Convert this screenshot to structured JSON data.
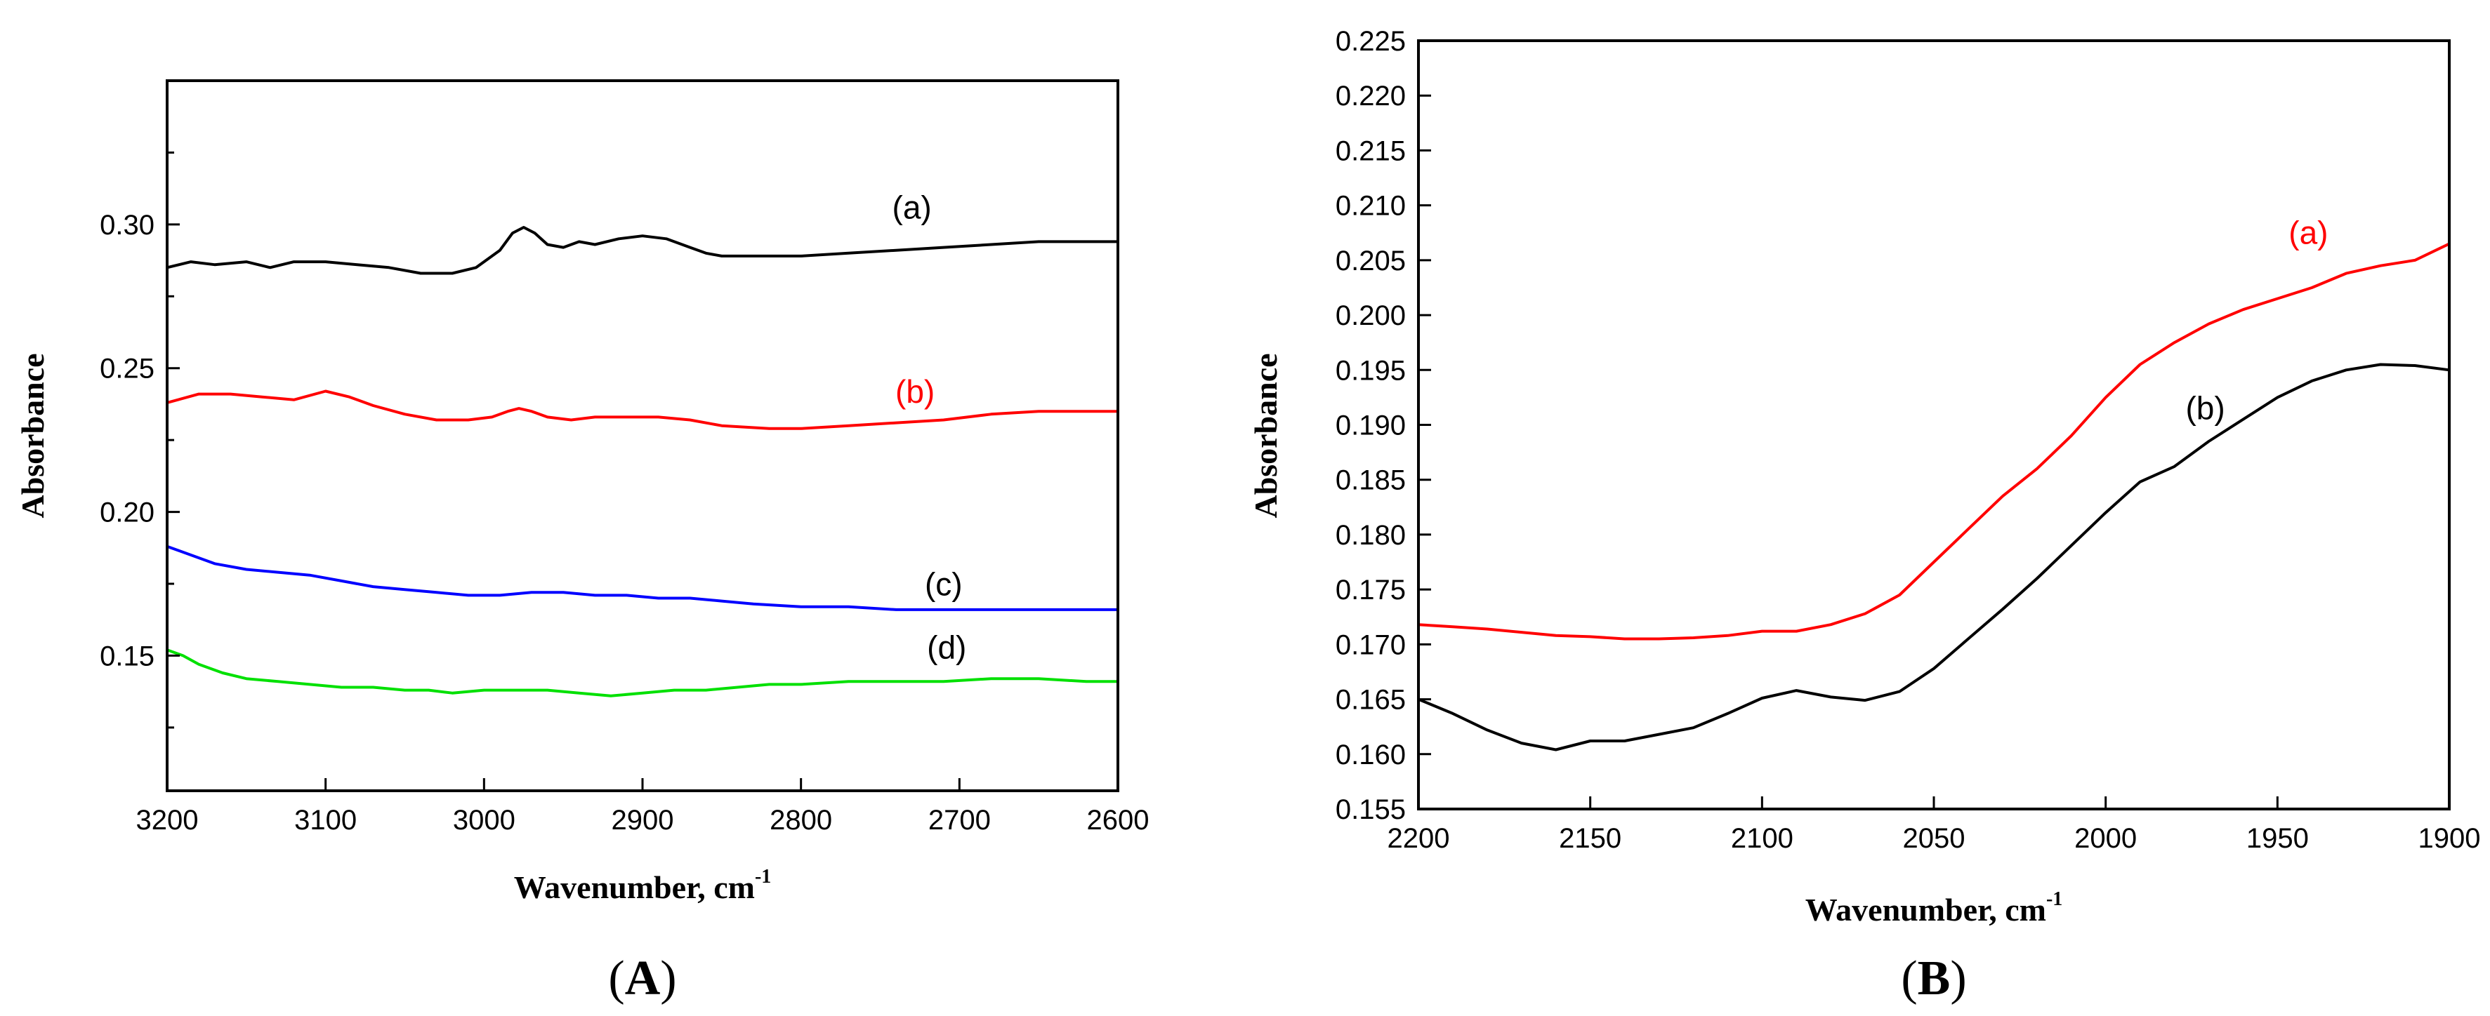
{
  "chart_data": [
    {
      "panel": "A",
      "panel_label": {
        "open": "(",
        "letter": "A",
        "close": ")"
      },
      "type": "line",
      "title": "",
      "xlabel": "Wavenumber, cm",
      "xlabel_superscript": "-1",
      "ylabel": "Absorbance",
      "xlim": [
        3200,
        2600
      ],
      "ylim": [
        0.103,
        0.35
      ],
      "xticks": [
        3200,
        3100,
        3000,
        2900,
        2800,
        2700,
        2600
      ],
      "xtick_labels": [
        "3200",
        "3100",
        "3000",
        "2900",
        "2800",
        "2700",
        "2600"
      ],
      "yticks": [
        0.15,
        0.2,
        0.25,
        0.3
      ],
      "ytick_labels": [
        "0.15",
        "0.20",
        "0.25",
        "0.30"
      ],
      "grid": false,
      "series": [
        {
          "name": "(a)",
          "color": "#000000",
          "label_at": [
            2730,
            0.302
          ],
          "x": [
            3200,
            3185,
            3170,
            3150,
            3135,
            3120,
            3100,
            3080,
            3060,
            3040,
            3020,
            3005,
            2990,
            2982,
            2975,
            2968,
            2960,
            2950,
            2940,
            2930,
            2915,
            2900,
            2885,
            2870,
            2860,
            2850,
            2830,
            2800,
            2770,
            2740,
            2710,
            2680,
            2650,
            2620,
            2600
          ],
          "y": [
            0.285,
            0.287,
            0.286,
            0.287,
            0.285,
            0.287,
            0.287,
            0.286,
            0.285,
            0.283,
            0.283,
            0.285,
            0.291,
            0.297,
            0.299,
            0.297,
            0.293,
            0.292,
            0.294,
            0.293,
            0.295,
            0.296,
            0.295,
            0.292,
            0.29,
            0.289,
            0.289,
            0.289,
            0.29,
            0.291,
            0.292,
            0.293,
            0.294,
            0.294,
            0.294
          ]
        },
        {
          "name": "(b)",
          "color": "#ff0000",
          "label_at": [
            2728,
            0.238
          ],
          "x": [
            3200,
            3180,
            3160,
            3140,
            3120,
            3100,
            3085,
            3070,
            3050,
            3030,
            3010,
            2995,
            2985,
            2978,
            2970,
            2960,
            2945,
            2930,
            2910,
            2890,
            2870,
            2850,
            2820,
            2800,
            2770,
            2740,
            2710,
            2680,
            2650,
            2620,
            2600
          ],
          "y": [
            0.238,
            0.241,
            0.241,
            0.24,
            0.239,
            0.242,
            0.24,
            0.237,
            0.234,
            0.232,
            0.232,
            0.233,
            0.235,
            0.236,
            0.235,
            0.233,
            0.232,
            0.233,
            0.233,
            0.233,
            0.232,
            0.23,
            0.229,
            0.229,
            0.23,
            0.231,
            0.232,
            0.234,
            0.235,
            0.235,
            0.235
          ]
        },
        {
          "name": "(c)",
          "color": "#0000ff",
          "label_at": [
            2710,
            0.171
          ],
          "x": [
            3200,
            3185,
            3170,
            3150,
            3130,
            3110,
            3090,
            3070,
            3050,
            3030,
            3010,
            2990,
            2970,
            2950,
            2930,
            2910,
            2890,
            2870,
            2850,
            2830,
            2800,
            2770,
            2740,
            2710,
            2680,
            2650,
            2620,
            2600
          ],
          "y": [
            0.188,
            0.185,
            0.182,
            0.18,
            0.179,
            0.178,
            0.176,
            0.174,
            0.173,
            0.172,
            0.171,
            0.171,
            0.172,
            0.172,
            0.171,
            0.171,
            0.17,
            0.17,
            0.169,
            0.168,
            0.167,
            0.167,
            0.166,
            0.166,
            0.166,
            0.166,
            0.166,
            0.166
          ]
        },
        {
          "name": "(d)",
          "color": "#00e000",
          "label_at": [
            2708,
            0.149
          ],
          "x": [
            3200,
            3190,
            3180,
            3165,
            3150,
            3130,
            3110,
            3090,
            3070,
            3050,
            3035,
            3020,
            3000,
            2980,
            2960,
            2940,
            2920,
            2900,
            2880,
            2860,
            2840,
            2820,
            2800,
            2770,
            2740,
            2710,
            2680,
            2650,
            2620,
            2600
          ],
          "y": [
            0.152,
            0.15,
            0.147,
            0.144,
            0.142,
            0.141,
            0.14,
            0.139,
            0.139,
            0.138,
            0.138,
            0.137,
            0.138,
            0.138,
            0.138,
            0.137,
            0.136,
            0.137,
            0.138,
            0.138,
            0.139,
            0.14,
            0.14,
            0.141,
            0.141,
            0.141,
            0.142,
            0.142,
            0.141,
            0.141
          ]
        }
      ]
    },
    {
      "panel": "B",
      "panel_label": {
        "open": "(",
        "letter": "B",
        "close": ")"
      },
      "type": "line",
      "title": "",
      "xlabel": "Wavenumber, cm",
      "xlabel_superscript": "-1",
      "ylabel": "Absorbance",
      "xlim": [
        2200,
        1900
      ],
      "ylim": [
        0.155,
        0.225
      ],
      "xticks": [
        2200,
        2150,
        2100,
        2050,
        2000,
        1950,
        1900
      ],
      "xtick_labels": [
        "2200",
        "2150",
        "2100",
        "2050",
        "2000",
        "1950",
        "1900"
      ],
      "yticks": [
        0.155,
        0.16,
        0.165,
        0.17,
        0.175,
        0.18,
        0.185,
        0.19,
        0.195,
        0.2,
        0.205,
        0.21,
        0.215,
        0.22,
        0.225
      ],
      "ytick_labels": [
        "0.155",
        "0.160",
        "0.165",
        "0.170",
        "0.175",
        "0.180",
        "0.185",
        "0.190",
        "0.195",
        "0.200",
        "0.205",
        "0.210",
        "0.215",
        "0.220",
        "0.225"
      ],
      "grid": false,
      "series": [
        {
          "name": "(a)",
          "color": "#ff0000",
          "label_at": [
            1941,
            0.2065
          ],
          "x": [
            2200,
            2190,
            2180,
            2170,
            2160,
            2150,
            2140,
            2130,
            2120,
            2110,
            2100,
            2090,
            2080,
            2070,
            2060,
            2050,
            2040,
            2030,
            2020,
            2010,
            2000,
            1990,
            1980,
            1970,
            1960,
            1950,
            1940,
            1930,
            1920,
            1910,
            1900
          ],
          "y": [
            0.1718,
            0.1716,
            0.1714,
            0.1711,
            0.1708,
            0.1707,
            0.1705,
            0.1705,
            0.1706,
            0.1708,
            0.1712,
            0.1712,
            0.1718,
            0.1728,
            0.1745,
            0.1775,
            0.1805,
            0.1835,
            0.186,
            0.189,
            0.1925,
            0.1955,
            0.1975,
            0.1992,
            0.2005,
            0.2015,
            0.2025,
            0.2038,
            0.2045,
            0.205,
            0.2065
          ]
        },
        {
          "name": "(b)",
          "color": "#000000",
          "label_at": [
            1971,
            0.1905
          ],
          "x": [
            2200,
            2190,
            2180,
            2170,
            2160,
            2150,
            2140,
            2130,
            2120,
            2110,
            2100,
            2090,
            2080,
            2070,
            2060,
            2050,
            2040,
            2030,
            2020,
            2010,
            2000,
            1990,
            1980,
            1970,
            1960,
            1950,
            1940,
            1930,
            1920,
            1910,
            1900
          ],
          "y": [
            0.165,
            0.1637,
            0.1622,
            0.161,
            0.1604,
            0.1612,
            0.1612,
            0.1618,
            0.1624,
            0.1637,
            0.1651,
            0.1658,
            0.1652,
            0.1649,
            0.1657,
            0.1678,
            0.1705,
            0.1732,
            0.176,
            0.179,
            0.182,
            0.1848,
            0.1862,
            0.1885,
            0.1905,
            0.1925,
            0.194,
            0.195,
            0.1955,
            0.1954,
            0.195
          ]
        }
      ]
    }
  ]
}
